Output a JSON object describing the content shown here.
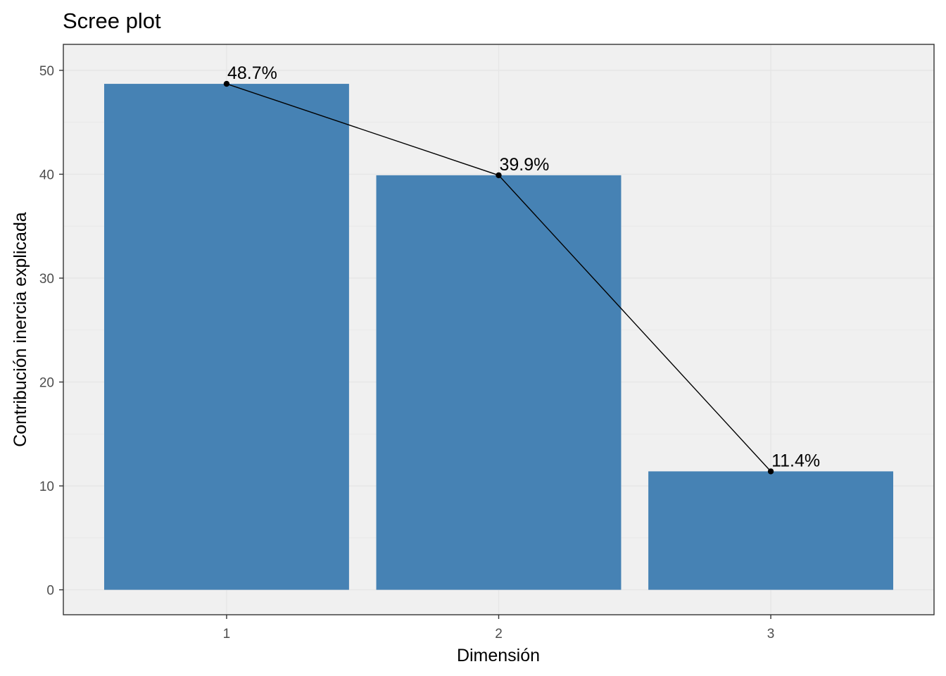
{
  "chart_data": {
    "type": "bar",
    "title": "Scree plot",
    "xlabel": "Dimensión",
    "ylabel": "Contribución inercia explicada",
    "categories": [
      "1",
      "2",
      "3"
    ],
    "values": [
      48.7,
      39.9,
      11.4
    ],
    "data_labels": [
      "48.7%",
      "39.9%",
      "11.4%"
    ],
    "ylim": [
      -2.4,
      52.5
    ],
    "yticks": [
      0,
      10,
      20,
      30,
      40,
      50
    ],
    "ytick_labels": [
      "0",
      "10",
      "20",
      "30",
      "40",
      "50"
    ],
    "grid": true,
    "overlay": "line with points connecting bar tops",
    "colors": {
      "bar": "#4682b4",
      "line": "#000000",
      "panel_background": "#f0f0f0",
      "grid": "#e6e6e6"
    }
  }
}
